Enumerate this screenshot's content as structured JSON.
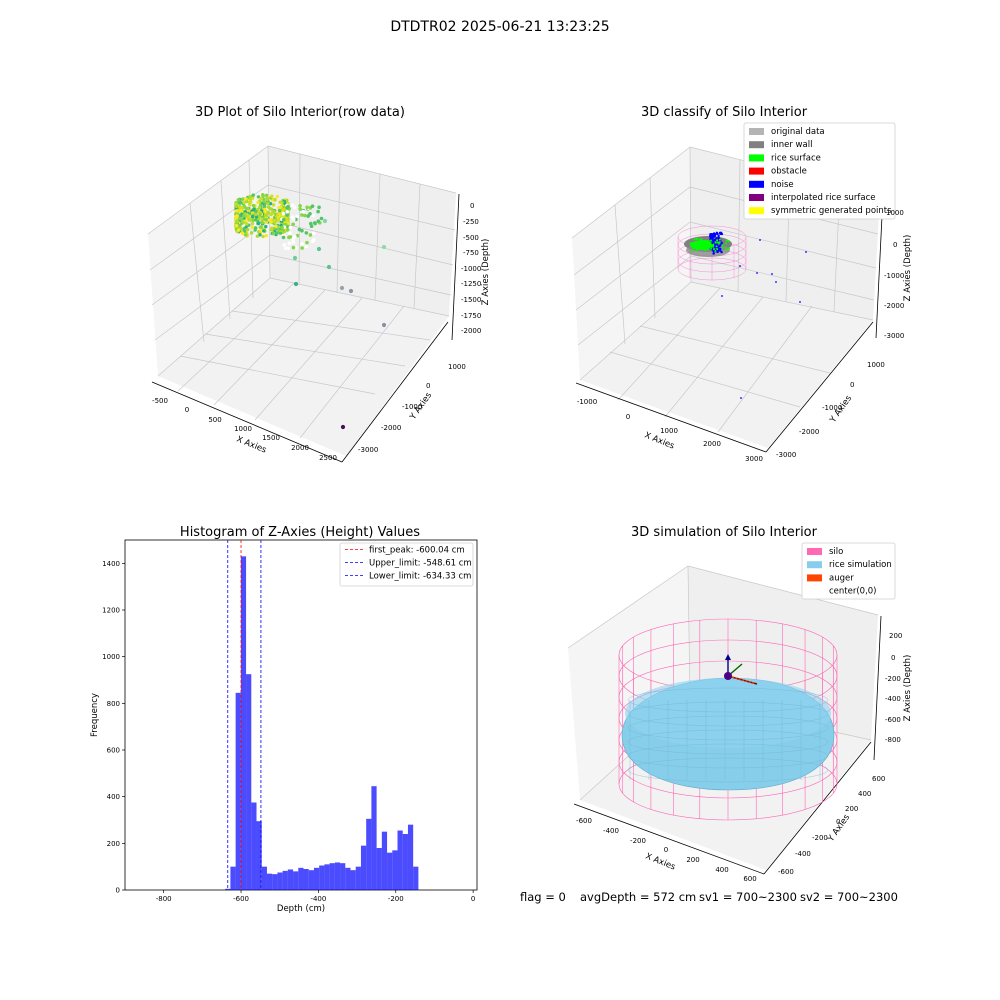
{
  "page": {
    "suptitle": "DTDTR02 2025-06-21 13:23:25",
    "footer_left": "flag = 0",
    "footer_depth": "avgDepth = 572 cm",
    "footer_sv1": "sv1 = 700~2300",
    "footer_sv2": "sv2 = 700~2300"
  },
  "panel1": {
    "title": "3D Plot of Silo Interior(row data)",
    "xlabel": "X Axies",
    "ylabel": "Y Axies",
    "zlabel": "Z Axies (Depth)",
    "xticks": [
      "-500",
      "0",
      "500",
      "1000",
      "1500",
      "2000",
      "2500"
    ],
    "yticks": [
      "1000",
      "0",
      "-1000",
      "-2000",
      "-3000"
    ],
    "zticks": [
      "0",
      "-250",
      "-500",
      "-750",
      "-1000",
      "-1250",
      "-1500",
      "-1750",
      "-2000"
    ]
  },
  "panel2": {
    "title": "3D classify of Silo Interior",
    "xlabel": "X Axies",
    "ylabel": "Y Axies",
    "zlabel": "Z Axies (Depth)",
    "xticks": [
      "-1000",
      "0",
      "1000",
      "2000",
      "3000"
    ],
    "yticks": [
      "1000",
      "0",
      "-1000",
      "-2000",
      "-3000"
    ],
    "zticks": [
      "1000",
      "0",
      "-1000",
      "-2000",
      "-3000"
    ],
    "legend": [
      {
        "label": "original data",
        "color": "#b4b4b4"
      },
      {
        "label": "inner wall",
        "color": "#808080"
      },
      {
        "label": "rice surface",
        "color": "#00ff00"
      },
      {
        "label": "obstacle",
        "color": "#ff0000"
      },
      {
        "label": "noise",
        "color": "#0000ff"
      },
      {
        "label": "interpolated rice surface",
        "color": "#800080"
      },
      {
        "label": "symmetric generated points",
        "color": "#ffff00"
      }
    ]
  },
  "panel4": {
    "title": "3D simulation of Silo Interior",
    "xlabel": "X Axies",
    "ylabel": "Y Axies",
    "zlabel": "Z Axies (Depth)",
    "xticks": [
      "-600",
      "-400",
      "-200",
      "0",
      "200",
      "400",
      "600"
    ],
    "yticks": [
      "600",
      "400",
      "200",
      "0",
      "-200",
      "-400",
      "-600"
    ],
    "zticks": [
      "200",
      "0",
      "-200",
      "-400",
      "-600",
      "-800"
    ],
    "legend": [
      {
        "label": "silo",
        "color": "#ff69b4"
      },
      {
        "label": "rice simulation",
        "color": "#87ceeb"
      },
      {
        "label": "auger",
        "color": "#ff4500"
      },
      {
        "label": "center(0,0)",
        "color": "#ffffff"
      }
    ]
  },
  "chart_data": [
    {
      "type": "bar",
      "title": "Histogram of Z-Axies (Height) Values",
      "xlabel": "Depth (cm)",
      "ylabel": "Frequency",
      "xlim": [
        -900,
        10
      ],
      "ylim": [
        0,
        1500
      ],
      "xticks": [
        -800,
        -600,
        -400,
        -200,
        0
      ],
      "yticks": [
        0,
        200,
        400,
        600,
        800,
        1000,
        1200,
        1400
      ],
      "bar_color": "#0000ff",
      "bin_width": 13.5,
      "bins": [
        {
          "x": -641,
          "v": 5
        },
        {
          "x": -627.5,
          "v": 100
        },
        {
          "x": -614,
          "v": 845
        },
        {
          "x": -600.5,
          "v": 1430
        },
        {
          "x": -587,
          "v": 925
        },
        {
          "x": -573.5,
          "v": 375
        },
        {
          "x": -560,
          "v": 295
        },
        {
          "x": -546.5,
          "v": 100
        },
        {
          "x": -533,
          "v": 70
        },
        {
          "x": -519.5,
          "v": 68
        },
        {
          "x": -506,
          "v": 75
        },
        {
          "x": -492.5,
          "v": 82
        },
        {
          "x": -479,
          "v": 88
        },
        {
          "x": -465.5,
          "v": 80
        },
        {
          "x": -452,
          "v": 95
        },
        {
          "x": -438.5,
          "v": 90
        },
        {
          "x": -425,
          "v": 85
        },
        {
          "x": -411.5,
          "v": 95
        },
        {
          "x": -398,
          "v": 105
        },
        {
          "x": -384.5,
          "v": 110
        },
        {
          "x": -371,
          "v": 115
        },
        {
          "x": -357.5,
          "v": 118
        },
        {
          "x": -344,
          "v": 115
        },
        {
          "x": -330.5,
          "v": 95
        },
        {
          "x": -317,
          "v": 85
        },
        {
          "x": -303.5,
          "v": 100
        },
        {
          "x": -290,
          "v": 190
        },
        {
          "x": -276.5,
          "v": 305
        },
        {
          "x": -263,
          "v": 445
        },
        {
          "x": -249.5,
          "v": 180
        },
        {
          "x": -236,
          "v": 250
        },
        {
          "x": -222.5,
          "v": 160
        },
        {
          "x": -209,
          "v": 170
        },
        {
          "x": -195.5,
          "v": 255
        },
        {
          "x": -182,
          "v": 240
        },
        {
          "x": -168.5,
          "v": 280
        },
        {
          "x": -155,
          "v": 100
        }
      ],
      "lines": [
        {
          "label": "first_peak: -600.04 cm",
          "x": -600.04,
          "color": "#ff0000"
        },
        {
          "label": "Upper_limit: -548.61 cm",
          "x": -548.61,
          "color": "#0000ff"
        },
        {
          "label": "Lower_limit: -634.33 cm",
          "x": -634.33,
          "color": "#0000ff"
        }
      ]
    }
  ]
}
